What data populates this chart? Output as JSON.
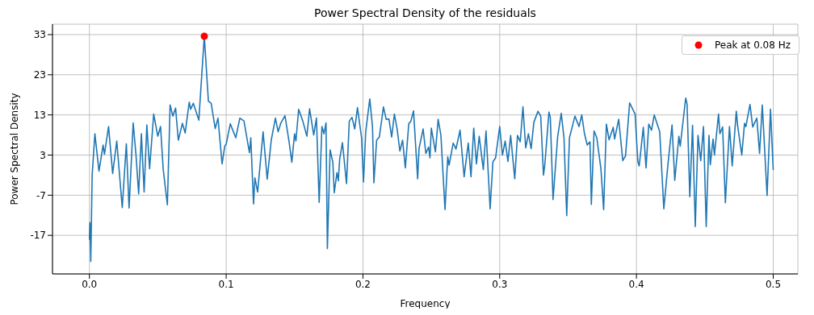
{
  "chart_data": {
    "type": "line",
    "title": "Power Spectral Density of the residuals",
    "xlabel": "Frequency",
    "ylabel": "Power Spectral Density",
    "xlim": [
      -0.027,
      0.518
    ],
    "ylim": [
      -26.6,
      35.6
    ],
    "xticks": [
      {
        "value": 0,
        "label": "0.0"
      },
      0.1,
      0.2,
      0.3,
      0.4,
      0.5
    ],
    "yticks": [
      -17,
      -7,
      3,
      13,
      23,
      33
    ],
    "grid": true,
    "legend": "top right",
    "series": [
      {
        "color": "#1f77b4",
        "x": [
          0,
          0.0004,
          0.001,
          0.002,
          0.004,
          0.007,
          0.01,
          0.011,
          0.014,
          0.017,
          0.02,
          0.024,
          0.027,
          0.029,
          0.032,
          0.034,
          0.036,
          0.038,
          0.04,
          0.042,
          0.044,
          0.047,
          0.05,
          0.052,
          0.054,
          0.057,
          0.059,
          0.061,
          0.063,
          0.065,
          0.068,
          0.07,
          0.073,
          0.074,
          0.076,
          0.08,
          0.084,
          0.087,
          0.089,
          0.092,
          0.094,
          0.097,
          0.099,
          0.1,
          0.103,
          0.107,
          0.11,
          0.113,
          0.117,
          0.118,
          0.12,
          0.121,
          0.123,
          0.127,
          0.13,
          0.133,
          0.136,
          0.138,
          0.14,
          0.143,
          0.146,
          0.148,
          0.15,
          0.151,
          0.153,
          0.156,
          0.159,
          0.161,
          0.164,
          0.166,
          0.168,
          0.17,
          0.1715,
          0.173,
          0.174,
          0.176,
          0.178,
          0.179,
          0.181,
          0.182,
          0.183,
          0.185,
          0.188,
          0.19,
          0.192,
          0.194,
          0.196,
          0.199,
          0.2004,
          0.202,
          0.205,
          0.207,
          0.208,
          0.21,
          0.212,
          0.215,
          0.217,
          0.219,
          0.221,
          0.223,
          0.225,
          0.227,
          0.229,
          0.231,
          0.2335,
          0.235,
          0.237,
          0.24,
          0.241,
          0.244,
          0.246,
          0.248,
          0.249,
          0.25,
          0.253,
          0.255,
          0.257,
          0.26,
          0.262,
          0.263,
          0.266,
          0.268,
          0.271,
          0.274,
          0.277,
          0.279,
          0.281,
          0.283,
          0.285,
          0.288,
          0.29,
          0.293,
          0.295,
          0.297,
          0.3,
          0.302,
          0.304,
          0.306,
          0.308,
          0.311,
          0.313,
          0.315,
          0.317,
          0.319,
          0.321,
          0.323,
          0.325,
          0.328,
          0.33,
          0.332,
          0.333,
          0.336,
          0.337,
          0.339,
          0.3424,
          0.345,
          0.347,
          0.349,
          0.351,
          0.353,
          0.355,
          0.358,
          0.36,
          0.362,
          0.364,
          0.366,
          0.367,
          0.369,
          0.371,
          0.374,
          0.376,
          0.378,
          0.38,
          0.383,
          0.384,
          0.387,
          0.39,
          0.392,
          0.395,
          0.399,
          0.401,
          0.402,
          0.405,
          0.407,
          0.409,
          0.411,
          0.413,
          0.417,
          0.42,
          0.423,
          0.426,
          0.428,
          0.431,
          0.432,
          0.436,
          0.437,
          0.439,
          0.441,
          0.443,
          0.445,
          0.447,
          0.449,
          0.451,
          0.453,
          0.454,
          0.456,
          0.457,
          0.46,
          0.461,
          0.463,
          0.465,
          0.468,
          0.47,
          0.473,
          0.474,
          0.477,
          0.479,
          0.48,
          0.483,
          0.485,
          0.488,
          0.49,
          0.492,
          0.4955,
          0.498,
          0.5
        ],
        "values": [
          -18.1,
          -13.8,
          -23.5,
          -2,
          8.3,
          -1,
          5.5,
          3.2,
          10.1,
          -1.6,
          6.5,
          -10.1,
          5.8,
          -10.2,
          11,
          3.3,
          -6.7,
          8.3,
          -6.2,
          10.5,
          -0.4,
          13.2,
          7.7,
          10.1,
          -0.7,
          -9.4,
          15.5,
          12.7,
          14.7,
          6.7,
          10.9,
          8.5,
          16.2,
          14.4,
          15.9,
          11.7,
          32.6,
          16.4,
          15.9,
          9.6,
          12.2,
          0.8,
          5.3,
          5.7,
          10.8,
          7.3,
          12.2,
          11.5,
          3.6,
          7.3,
          -9.2,
          -2.7,
          -6.2,
          8.8,
          -3,
          6.8,
          12.2,
          8.8,
          11,
          12.8,
          6.3,
          1.2,
          8.3,
          6.5,
          14.4,
          11.5,
          7.7,
          14.5,
          8,
          12.2,
          -8.8,
          10.1,
          8.3,
          11,
          -20.3,
          4.3,
          1.2,
          -6.4,
          -1.4,
          -3.4,
          2,
          6.1,
          -4.1,
          11.4,
          12.4,
          9.5,
          14.8,
          7.3,
          -3.7,
          8.7,
          17,
          10,
          -3.9,
          6.7,
          7.5,
          15,
          11.9,
          12,
          7.5,
          13.2,
          9.5,
          4,
          6.7,
          -0.2,
          10.8,
          11.4,
          14,
          -2.9,
          4.6,
          9.5,
          3.4,
          5,
          2.3,
          9.7,
          3.8,
          11.9,
          8,
          -10.6,
          2.6,
          0.5,
          6,
          4.5,
          9.2,
          -2.4,
          6,
          -2.4,
          9.7,
          0.8,
          7.7,
          -0.6,
          9,
          -10.4,
          1.3,
          2.3,
          10.1,
          3,
          6.5,
          1.4,
          7.9,
          -2.9,
          7.9,
          6.3,
          15,
          4.8,
          8.3,
          4.6,
          11.2,
          13.9,
          12.7,
          -2,
          0.6,
          13.7,
          12.4,
          -8.1,
          7.7,
          13.4,
          7.3,
          -12.1,
          7.3,
          10,
          12.7,
          10.1,
          13,
          8.3,
          5.5,
          6.3,
          -9.3,
          9,
          7.3,
          -0.4,
          -10.6,
          10.7,
          6.8,
          9.9,
          7,
          11.9,
          1.6,
          2.8,
          16,
          13.2,
          1.4,
          0.3,
          9.9,
          -0.2,
          10.7,
          9.2,
          13,
          8.8,
          -10.4,
          0.6,
          10.5,
          -3.3,
          7.7,
          5.2,
          17.2,
          15.7,
          -7.4,
          10.4,
          -14.8,
          7.9,
          1.6,
          10.1,
          -14.8,
          7.9,
          0.6,
          7,
          3,
          13.2,
          8.3,
          10,
          -8.9,
          10.1,
          0.3,
          13.9,
          10.3,
          3,
          10.9,
          10.1,
          15.6,
          10,
          12.2,
          3.4,
          15.5,
          -7.1,
          14.4,
          -0.7
        ]
      },
      {
        "type": "scatter",
        "name": "Peak at 0.08 Hz",
        "color": "#ff0000",
        "marker": "circle",
        "x": [
          0.084
        ],
        "values": [
          32.6
        ]
      }
    ]
  }
}
